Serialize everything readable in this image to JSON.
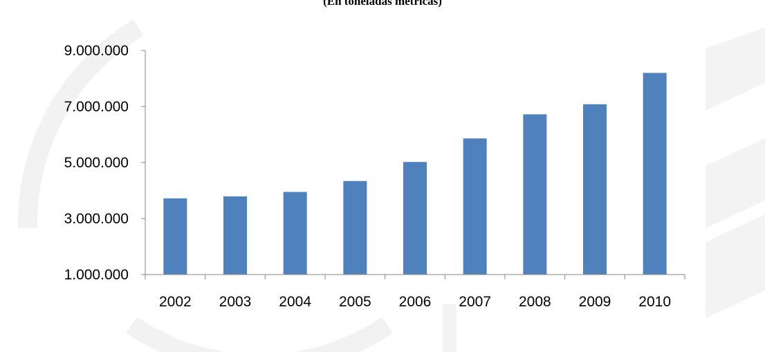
{
  "chart_data": {
    "type": "bar",
    "title": "(En toneladas métricas)",
    "categories": [
      "2002",
      "2003",
      "2004",
      "2005",
      "2006",
      "2007",
      "2008",
      "2009",
      "2010"
    ],
    "values": [
      3720000,
      3790000,
      3950000,
      4340000,
      5020000,
      5860000,
      6720000,
      7080000,
      8200000
    ],
    "ylim": [
      1000000,
      9000000
    ],
    "yticks": [
      1000000,
      3000000,
      5000000,
      7000000,
      9000000
    ],
    "ytick_labels": [
      "1.000.000",
      "3.000.000",
      "5.000.000",
      "7.000.000",
      "9.000.000"
    ],
    "bar_color": "#4F81BD",
    "axis_color": "#868686",
    "grid": false,
    "legend": "none"
  }
}
